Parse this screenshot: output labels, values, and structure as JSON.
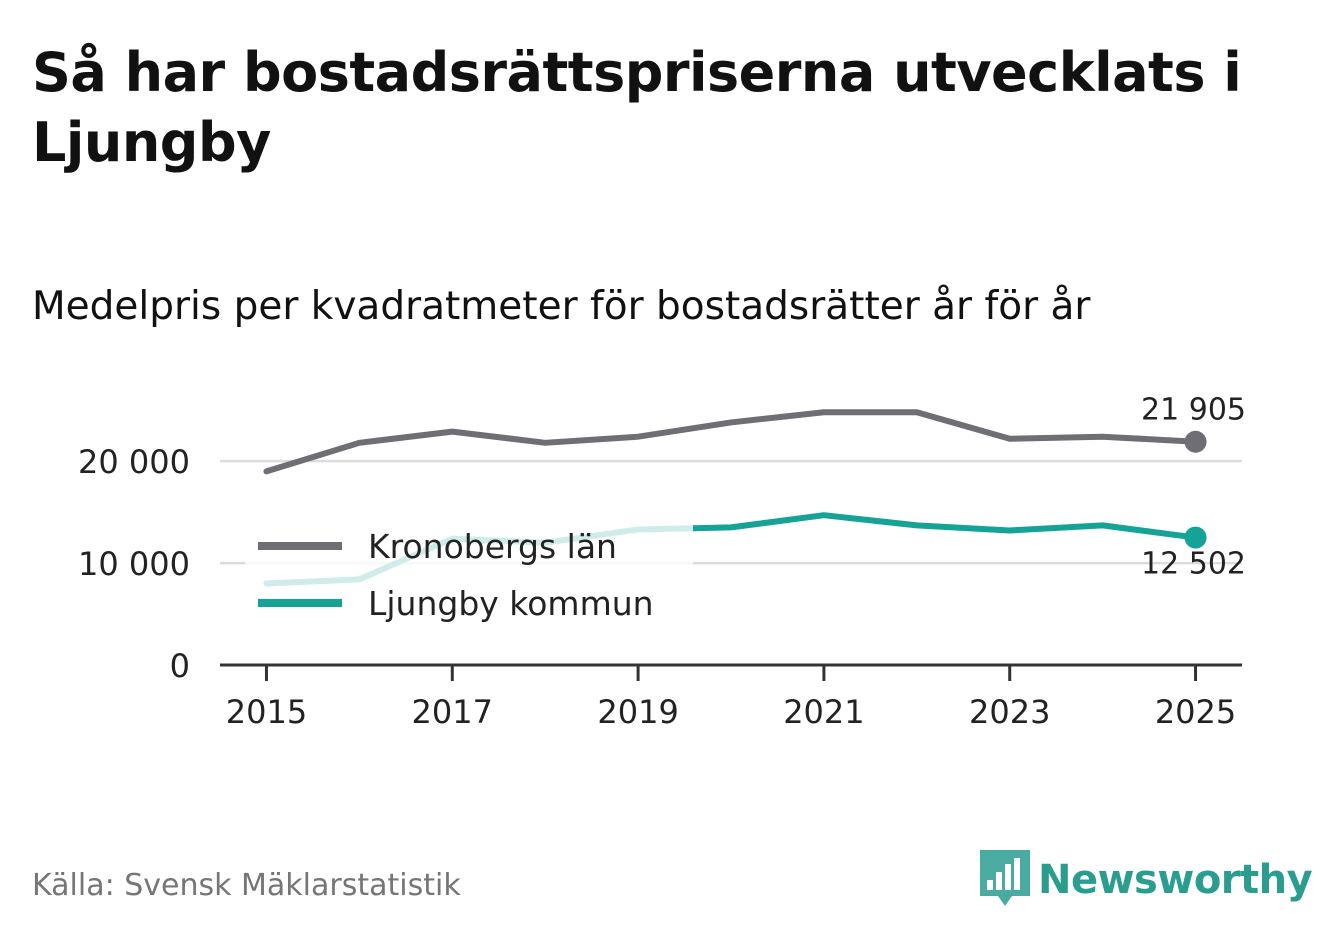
{
  "title": "Så har bostadsrättspriserna utvecklats i Ljungby",
  "subtitle": "Medelpris per kvadratmeter för bostadsrätter år för år",
  "source": "Källa: Svensk Mäklarstatistik",
  "logo": {
    "text": "Newsworthy",
    "icon": "newsworthy-chart-icon",
    "color": "#2a9d8f"
  },
  "colors": {
    "region": "#6e6e74",
    "municipality": "#15a297",
    "grid": "#dcdcdc",
    "axis": "#333333"
  },
  "chart_data": {
    "type": "line",
    "title": "Medelpris per kvadratmeter för bostadsrätter år för år",
    "xlabel": "",
    "ylabel": "",
    "x": [
      2015,
      2016,
      2017,
      2018,
      2019,
      2020,
      2021,
      2022,
      2023,
      2024,
      2025
    ],
    "xticks": [
      2015,
      2017,
      2019,
      2021,
      2023,
      2025
    ],
    "xtick_labels": [
      "2015",
      "2017",
      "2019",
      "2021",
      "2023",
      "2025"
    ],
    "yticks": [
      0,
      10000,
      20000
    ],
    "ytick_labels": [
      "0",
      "10 000",
      "20 000"
    ],
    "ylim": [
      0,
      26000
    ],
    "xlim": [
      2014.5,
      2025.5
    ],
    "grid": true,
    "legend_position": "center-left",
    "series": [
      {
        "name": "Kronobergs län",
        "color": "#6e6e74",
        "values": [
          19000,
          21800,
          22900,
          21800,
          22400,
          23800,
          24800,
          24800,
          22200,
          22400,
          21905
        ],
        "end_label": "21 905"
      },
      {
        "name": "Ljungby kommun",
        "color": "#15a297",
        "values": [
          8000,
          8400,
          12400,
          12000,
          13300,
          13500,
          14700,
          13700,
          13200,
          13700,
          12502
        ],
        "end_label": "12 502"
      }
    ]
  }
}
